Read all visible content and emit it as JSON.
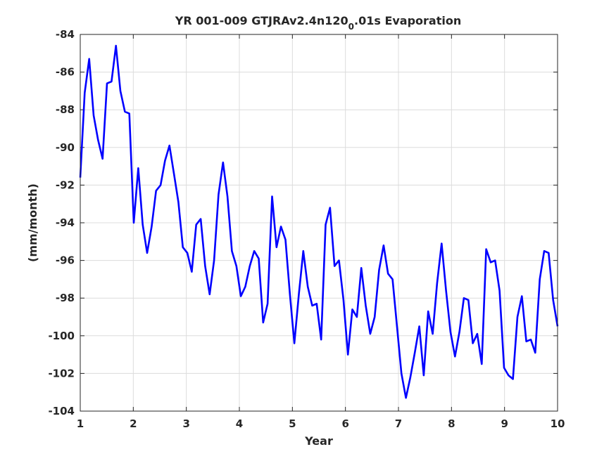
{
  "chart_data": {
    "type": "line",
    "title_main": "YR 001-009 GTJRAv2.4n120",
    "title_sub": "0",
    "title_tail": ".01s Evaporation",
    "xlabel": "Year",
    "ylabel": "(mm/month)",
    "xlim": [
      1,
      10
    ],
    "ylim": [
      -104,
      -84
    ],
    "xticks": [
      1,
      2,
      3,
      4,
      5,
      6,
      7,
      8,
      9,
      10
    ],
    "yticks": [
      -84,
      -86,
      -88,
      -90,
      -92,
      -94,
      -96,
      -98,
      -100,
      -102,
      -104
    ],
    "grid": true,
    "line_color": "#0000ff",
    "series": [
      {
        "values": [
          -91.6,
          -87.1,
          -85.3,
          -88.3,
          -89.6,
          -90.6,
          -86.6,
          -86.5,
          -84.6,
          -87.0,
          -88.1,
          -88.2,
          -94.0,
          -91.1,
          -94.1,
          -95.6,
          -94.2,
          -92.3,
          -92.0,
          -90.7,
          -89.9,
          -91.4,
          -92.9,
          -95.3,
          -95.6,
          -96.6,
          -94.1,
          -93.8,
          -96.3,
          -97.8,
          -96.0,
          -92.5,
          -90.8,
          -92.6,
          -95.5,
          -96.3,
          -97.9,
          -97.4,
          -96.3,
          -95.5,
          -95.9,
          -99.3,
          -98.3,
          -92.6,
          -95.3,
          -94.2,
          -94.9,
          -97.8,
          -100.4,
          -97.8,
          -95.5,
          -97.4,
          -98.4,
          -98.3,
          -100.2,
          -94.1,
          -93.2,
          -96.3,
          -96.0,
          -98.1,
          -101.0,
          -98.6,
          -99.0,
          -96.4,
          -98.4,
          -99.9,
          -99.0,
          -96.5,
          -95.2,
          -96.7,
          -97.0,
          -99.5,
          -102.0,
          -103.3,
          -102.2,
          -100.9,
          -99.5,
          -102.1,
          -98.7,
          -99.9,
          -97.2,
          -95.1,
          -97.6,
          -99.8,
          -101.1,
          -99.8,
          -98.0,
          -98.1,
          -100.4,
          -99.9,
          -101.5,
          -95.4,
          -96.1,
          -96.0,
          -97.6,
          -101.7,
          -102.1,
          -102.3,
          -99.0,
          -97.9,
          -100.3,
          -100.2,
          -100.9,
          -97.0,
          -95.5,
          -95.6,
          -98.1,
          -99.5
        ]
      }
    ]
  }
}
